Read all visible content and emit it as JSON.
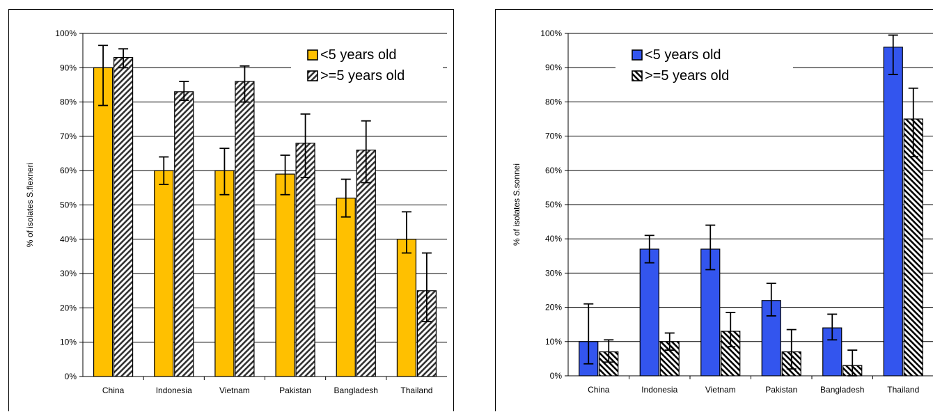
{
  "chart_data": [
    {
      "type": "bar",
      "title": "",
      "xlabel": "",
      "ylabel": "% of isolates S.flexneri",
      "ylim": [
        0,
        100
      ],
      "yticks": [
        "0%",
        "10%",
        "20%",
        "30%",
        "40%",
        "50%",
        "60%",
        "70%",
        "80%",
        "90%",
        "100%"
      ],
      "categories": [
        "China",
        "Indonesia",
        "Vietnam",
        "Pakistan",
        "Bangladesh",
        "Thailand"
      ],
      "grid": true,
      "legend_position": "top-right",
      "series": [
        {
          "name": "<5 years old",
          "color": "#FFC000",
          "pattern": "solid",
          "values": [
            90,
            60,
            60,
            59,
            52,
            40
          ],
          "err_low": [
            79,
            56,
            53,
            53,
            46.5,
            36
          ],
          "err_high": [
            96.5,
            64,
            66.5,
            64.5,
            57.5,
            48
          ]
        },
        {
          "name": ">=5 years old",
          "color": "#333333",
          "pattern": "hatch-forward",
          "values": [
            93,
            83,
            86,
            68,
            66,
            25
          ],
          "err_low": [
            90,
            80.5,
            80,
            58,
            56.5,
            16
          ],
          "err_high": [
            95.5,
            86,
            90.5,
            76.5,
            74.5,
            36
          ]
        }
      ]
    },
    {
      "type": "bar",
      "title": "",
      "xlabel": "",
      "ylabel": "% of isolates S.sonnei",
      "ylim": [
        0,
        100
      ],
      "yticks": [
        "0%",
        "10%",
        "20%",
        "30%",
        "40%",
        "50%",
        "60%",
        "70%",
        "80%",
        "90%",
        "100%"
      ],
      "categories": [
        "China",
        "Indonesia",
        "Vietnam",
        "Pakistan",
        "Bangladesh",
        "Thailand"
      ],
      "grid": true,
      "legend_position": "top-left",
      "series": [
        {
          "name": "<5 years old",
          "color": "#3355EE",
          "pattern": "solid",
          "values": [
            10,
            37,
            37,
            22,
            14,
            96
          ],
          "err_low": [
            3.5,
            33,
            31,
            17.5,
            10.5,
            88
          ],
          "err_high": [
            21,
            41,
            44,
            27,
            18,
            99.5
          ]
        },
        {
          "name": ">=5 years old",
          "color": "#000000",
          "pattern": "hatch-backward",
          "values": [
            7,
            10,
            13,
            7,
            3,
            75
          ],
          "err_low": [
            4,
            7.5,
            8.5,
            2,
            0,
            64
          ],
          "err_high": [
            10.5,
            12.5,
            18.5,
            13.5,
            7.5,
            84
          ]
        }
      ]
    }
  ]
}
